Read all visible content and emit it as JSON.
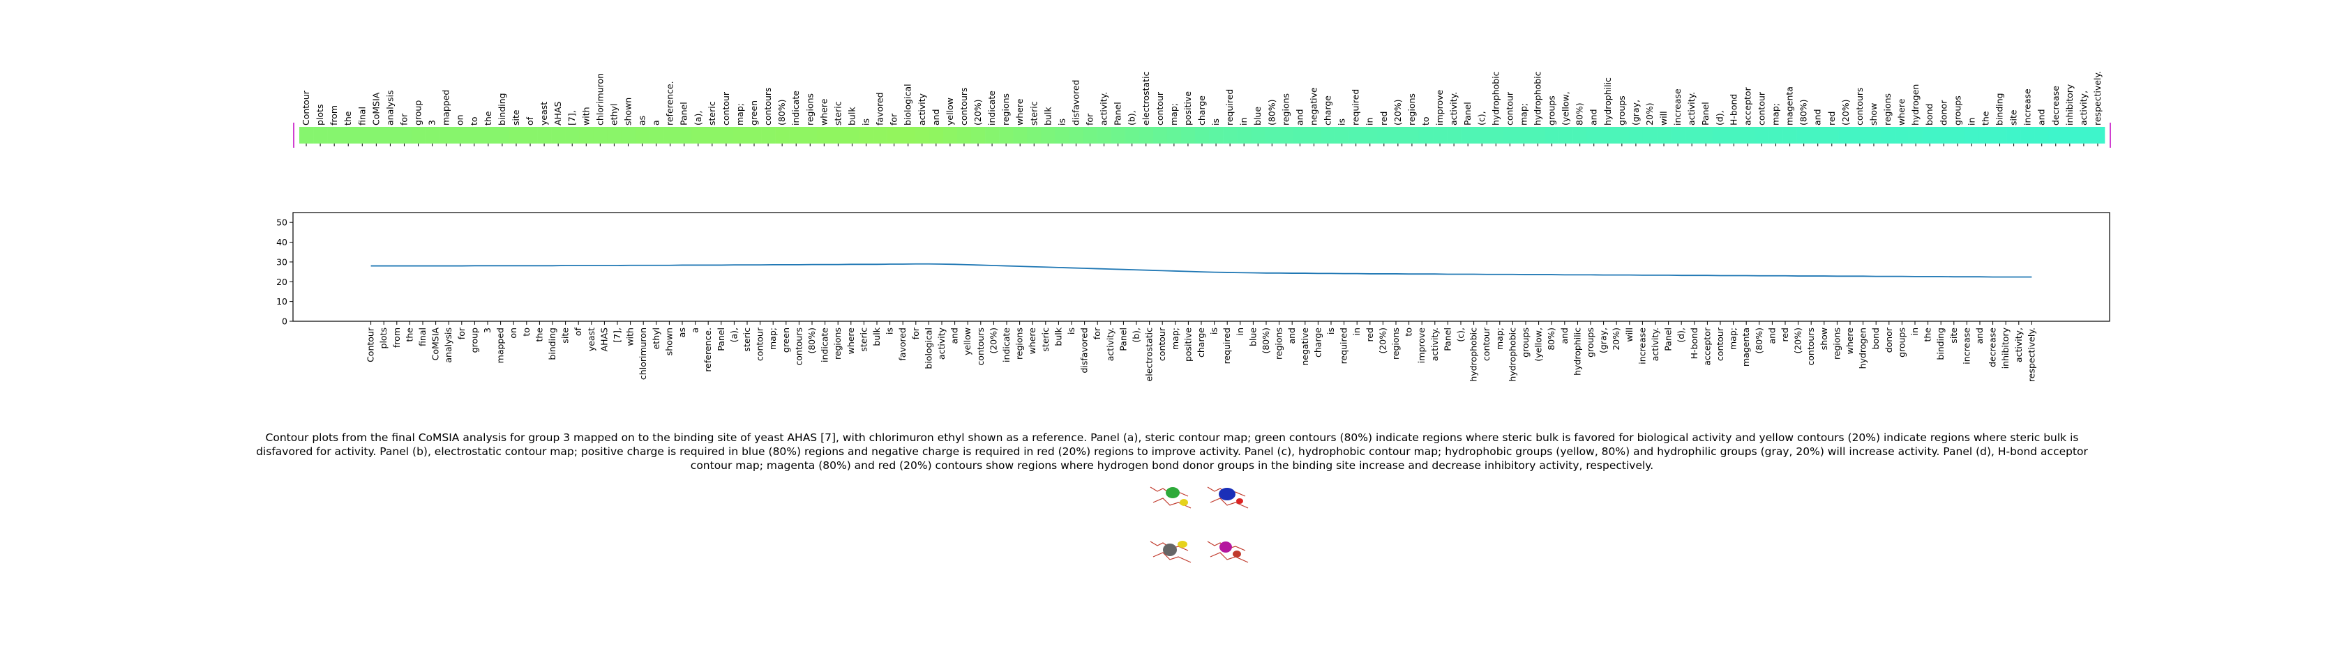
{
  "chart_data": {
    "type": "line",
    "categories": [
      "Contour",
      "plots",
      "from",
      "the",
      "final",
      "CoMSIA",
      "analysis",
      "for",
      "group",
      "3",
      "mapped",
      "on",
      "to",
      "the",
      "binding",
      "site",
      "of",
      "yeast",
      "AHAS",
      "[7],",
      "with",
      "chlorimuron",
      "ethyl",
      "shown",
      "as",
      "a",
      "reference.",
      "Panel",
      "(a),",
      "steric",
      "contour",
      "map;",
      "green",
      "contours",
      "(80%)",
      "indicate",
      "regions",
      "where",
      "steric",
      "bulk",
      "is",
      "favored",
      "for",
      "biological",
      "activity",
      "and",
      "yellow",
      "contours",
      "(20%)",
      "indicate",
      "regions",
      "where",
      "steric",
      "bulk",
      "is",
      "disfavored",
      "for",
      "activity.",
      "Panel",
      "(b),",
      "electrostatic",
      "contour",
      "map;",
      "positive",
      "charge",
      "is",
      "required",
      "in",
      "blue",
      "(80%)",
      "regions",
      "and",
      "negative",
      "charge",
      "is",
      "required",
      "in",
      "red",
      "(20%)",
      "regions",
      "to",
      "improve",
      "activity.",
      "Panel",
      "(c),",
      "hydrophobic",
      "contour",
      "map;",
      "hydrophobic",
      "groups",
      "(yellow,",
      "80%)",
      "and",
      "hydrophilic",
      "groups",
      "(gray,",
      "20%)",
      "will",
      "increase",
      "activity.",
      "Panel",
      "(d),",
      "H-bond",
      "acceptor",
      "contour",
      "map;",
      "magenta",
      "(80%)",
      "and",
      "red",
      "(20%)",
      "contours",
      "show",
      "regions",
      "where",
      "hydrogen",
      "bond",
      "donor",
      "groups",
      "in",
      "the",
      "binding",
      "site",
      "increase",
      "and",
      "decrease",
      "inhibitory",
      "activity,",
      "respectively."
    ],
    "values": [
      28.0,
      28.0,
      28.0,
      28.0,
      28.0,
      28.0,
      28.0,
      28.0,
      28.1,
      28.1,
      28.1,
      28.1,
      28.1,
      28.1,
      28.1,
      28.2,
      28.2,
      28.2,
      28.2,
      28.2,
      28.3,
      28.3,
      28.3,
      28.3,
      28.4,
      28.4,
      28.4,
      28.4,
      28.5,
      28.5,
      28.5,
      28.6,
      28.6,
      28.6,
      28.7,
      28.7,
      28.7,
      28.8,
      28.8,
      28.8,
      28.9,
      28.9,
      29.0,
      29.0,
      28.9,
      28.8,
      28.6,
      28.4,
      28.2,
      28.0,
      27.8,
      27.6,
      27.4,
      27.2,
      27.0,
      26.8,
      26.6,
      26.4,
      26.2,
      26.0,
      25.8,
      25.6,
      25.4,
      25.2,
      25.0,
      24.8,
      24.7,
      24.6,
      24.5,
      24.4,
      24.4,
      24.3,
      24.3,
      24.2,
      24.2,
      24.1,
      24.1,
      24.0,
      24.0,
      24.0,
      23.9,
      23.9,
      23.9,
      23.8,
      23.8,
      23.8,
      23.7,
      23.7,
      23.7,
      23.6,
      23.6,
      23.6,
      23.5,
      23.5,
      23.5,
      23.4,
      23.4,
      23.4,
      23.3,
      23.3,
      23.3,
      23.2,
      23.2,
      23.2,
      23.1,
      23.1,
      23.1,
      23.0,
      23.0,
      23.0,
      22.9,
      22.9,
      22.9,
      22.8,
      22.8,
      22.8,
      22.7,
      22.7,
      22.7,
      22.6,
      22.6,
      22.6,
      22.5,
      22.5,
      22.5,
      22.4,
      22.4,
      22.4,
      22.4
    ],
    "color": "#1f77b4",
    "strip_colors": [
      "#3ef5cb",
      "#93f55d"
    ],
    "xlim": [
      -6,
      134
    ],
    "ylim": [
      0,
      55
    ],
    "yticks": [
      0,
      10,
      20,
      30,
      40,
      50
    ],
    "caption": "Contour plots from the final CoMSIA analysis for group 3 mapped on to the binding site of yeast AHAS [7], with chlorimuron ethyl shown as a reference. Panel (a), steric contour map; green contours (80%) indicate regions where steric bulk is favored for biological activity and yellow contours (20%) indicate regions where steric bulk is disfavored for activity. Panel (b), electrostatic contour map; positive charge is required in blue (80%) regions and negative charge is required in red (20%) regions to improve activity. Panel (c), hydrophobic contour map; hydrophobic groups (yellow, 80%) and hydrophilic groups (gray, 20%) will increase activity. Panel (d), H-bond acceptor contour map; magenta (80%) and red (20%) contours show regions where hydrogen bond donor groups in the binding site increase and decrease inhibitory activity, respectively."
  }
}
